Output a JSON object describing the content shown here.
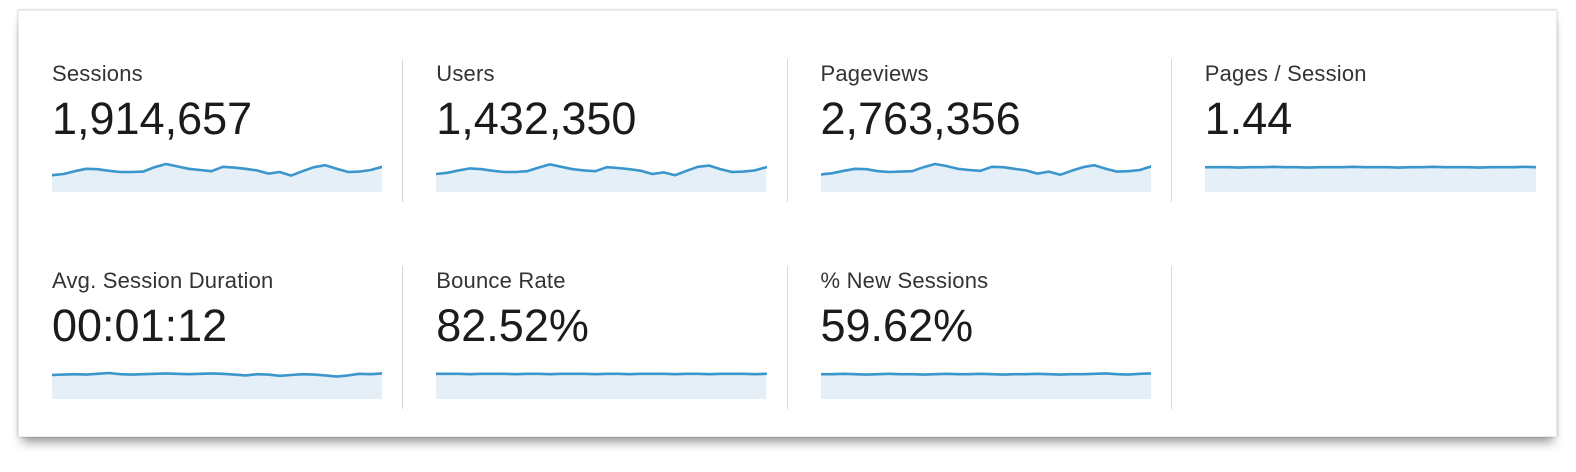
{
  "widget_title": "analytics-overview-metrics",
  "theme": {
    "spark_line_color": "#3b96cc",
    "spark_fill_color": "#e4eff8",
    "divider_color": "#d9d9d9",
    "label_color": "#333333",
    "value_color": "#1b1b1b"
  },
  "metrics": [
    {
      "id": "sessions",
      "label": "Sessions",
      "value": "1,914,657",
      "spark": [
        42,
        45,
        52,
        58,
        57,
        53,
        50,
        50,
        51,
        62,
        70,
        64,
        58,
        55,
        52,
        63,
        61,
        58,
        54,
        46,
        50,
        41,
        52,
        62,
        67,
        58,
        50,
        51,
        55,
        63
      ]
    },
    {
      "id": "users",
      "label": "Users",
      "value": "1,432,350",
      "spark": [
        45,
        48,
        54,
        59,
        57,
        53,
        50,
        50,
        52,
        61,
        69,
        63,
        57,
        54,
        52,
        62,
        60,
        57,
        53,
        45,
        49,
        42,
        53,
        63,
        66,
        57,
        50,
        51,
        54,
        62
      ]
    },
    {
      "id": "pageviews",
      "label": "Pageviews",
      "value": "2,763,356",
      "spark": [
        44,
        47,
        53,
        58,
        57,
        52,
        50,
        51,
        52,
        62,
        70,
        65,
        58,
        55,
        53,
        63,
        62,
        58,
        54,
        46,
        51,
        43,
        53,
        62,
        67,
        58,
        51,
        52,
        55,
        64
      ]
    },
    {
      "id": "pages-per-session",
      "label": "Pages / Session",
      "value": "1.44",
      "spark": [
        62,
        62,
        62,
        61,
        62,
        62,
        63,
        62,
        62,
        61,
        62,
        62,
        62,
        63,
        62,
        62,
        62,
        61,
        62,
        62,
        63,
        62,
        62,
        62,
        61,
        62,
        62,
        62,
        63,
        62
      ]
    },
    {
      "id": "avg-session-duration",
      "label": "Avg. Session Duration",
      "value": "00:01:12",
      "spark": [
        60,
        61,
        62,
        61,
        63,
        65,
        62,
        61,
        62,
        63,
        64,
        63,
        62,
        63,
        64,
        63,
        61,
        59,
        62,
        61,
        58,
        60,
        62,
        61,
        59,
        56,
        59,
        63,
        62,
        64
      ]
    },
    {
      "id": "bounce-rate",
      "label": "Bounce Rate",
      "value": "82.52%",
      "spark": [
        63,
        63,
        63,
        62,
        63,
        63,
        63,
        62,
        63,
        63,
        62,
        63,
        63,
        63,
        62,
        63,
        63,
        62,
        63,
        63,
        63,
        62,
        63,
        63,
        62,
        63,
        63,
        63,
        62,
        63
      ]
    },
    {
      "id": "new-sessions",
      "label": "% New Sessions",
      "value": "59.62%",
      "spark": [
        62,
        62,
        63,
        62,
        61,
        62,
        63,
        62,
        62,
        61,
        62,
        63,
        62,
        62,
        63,
        62,
        61,
        62,
        62,
        63,
        62,
        61,
        62,
        62,
        63,
        64,
        62,
        61,
        63,
        64
      ]
    }
  ]
}
